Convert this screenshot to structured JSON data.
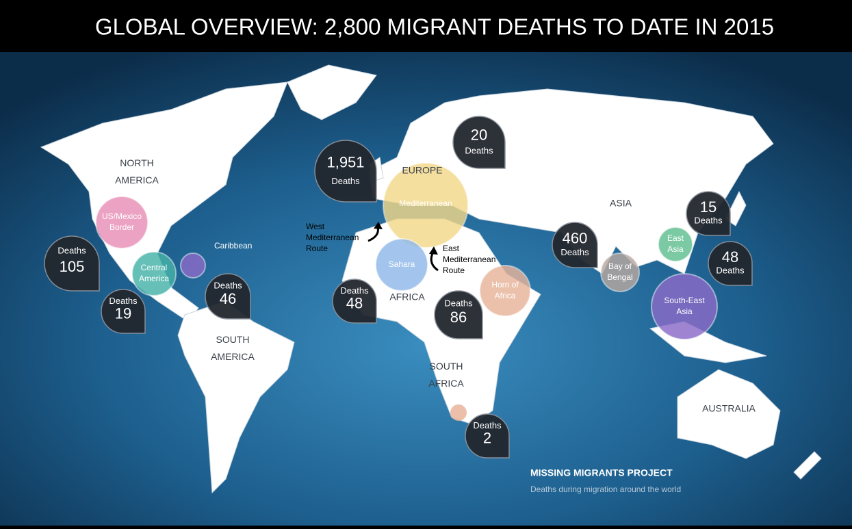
{
  "title": "GLOBAL OVERVIEW: 2,800 MIGRANT DEATHS TO DATE IN 2015",
  "continents": [
    {
      "lines": [
        "NORTH",
        "AMERICA"
      ]
    },
    {
      "lines": [
        "SOUTH",
        "AMERICA"
      ]
    },
    {
      "lines": [
        "EUROPE"
      ]
    },
    {
      "lines": [
        "AFRICA"
      ]
    },
    {
      "lines": [
        "SOUTH",
        "AFRICA"
      ]
    },
    {
      "lines": [
        "ASIA"
      ]
    },
    {
      "lines": [
        "AUSTRALIA"
      ]
    }
  ],
  "regions": [
    {
      "lines": [
        "US/Mexico",
        "Border"
      ],
      "color": "#e88fb6"
    },
    {
      "lines": [
        "Central",
        "America"
      ],
      "color": "#45b3a8"
    },
    {
      "lines": [
        "Caribbean"
      ],
      "color": "#8a6bc8"
    },
    {
      "lines": [
        "Mediterranean"
      ],
      "color": "#f2d88a"
    },
    {
      "lines": [
        "Sahara"
      ],
      "color": "#8fb8e8"
    },
    {
      "lines": [
        "Horn of",
        "Africa"
      ],
      "color": "#e8b49a"
    },
    {
      "lines": [
        "Bay of",
        "Bengal"
      ],
      "color": "#b8a8a0"
    },
    {
      "lines": [
        "East",
        "Asia"
      ],
      "color": "#5fbf8f"
    },
    {
      "lines": [
        "South-East",
        "Asia"
      ],
      "color": "#8a6bc8"
    }
  ],
  "deaths": [
    {
      "count": "1,951",
      "label": "Deaths"
    },
    {
      "count": "20",
      "label": "Deaths"
    },
    {
      "count": "105",
      "label": "Deaths"
    },
    {
      "count": "19",
      "label": "Deaths"
    },
    {
      "count": "46",
      "label": "Deaths"
    },
    {
      "count": "48",
      "label": "Deaths"
    },
    {
      "count": "86",
      "label": "Deaths"
    },
    {
      "count": "2",
      "label": "Deaths"
    },
    {
      "count": "460",
      "label": "Deaths"
    },
    {
      "count": "15",
      "label": "Deaths"
    },
    {
      "count": "48",
      "label": "Deaths"
    }
  ],
  "routes": [
    {
      "lines": [
        "West",
        "Mediterranean",
        "Route"
      ]
    },
    {
      "lines": [
        "East",
        "Mediterranean",
        "Route"
      ]
    }
  ],
  "footer": {
    "title": "MISSING MIGRANTS PROJECT",
    "subtitle": "Deaths during migration around the world"
  }
}
